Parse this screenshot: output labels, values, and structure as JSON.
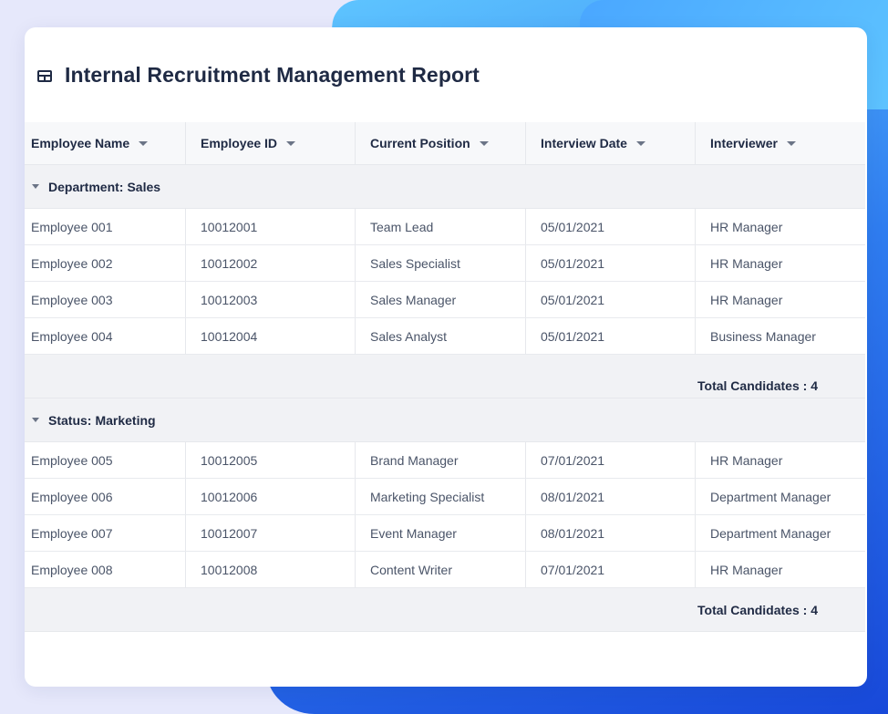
{
  "report": {
    "title": "Internal Recruitment Management Report"
  },
  "columns": [
    {
      "label": "Employee Name"
    },
    {
      "label": "Employee ID"
    },
    {
      "label": "Current Position"
    },
    {
      "label": "Interview Date"
    },
    {
      "label": "Interviewer"
    }
  ],
  "groups": [
    {
      "label": "Department:",
      "value": "Sales",
      "rows": [
        {
          "name": "Employee 001",
          "id": "10012001",
          "position": "Team Lead",
          "date": "05/01/2021",
          "interviewer": "HR Manager"
        },
        {
          "name": "Employee 002",
          "id": "10012002",
          "position": "Sales Specialist",
          "date": "05/01/2021",
          "interviewer": "HR Manager"
        },
        {
          "name": "Employee 003",
          "id": "10012003",
          "position": "Sales Manager",
          "date": "05/01/2021",
          "interviewer": "HR Manager"
        },
        {
          "name": "Employee 004",
          "id": "10012004",
          "position": "Sales Analyst",
          "date": "05/01/2021",
          "interviewer": "Business Manager"
        }
      ],
      "total": "Total Candidates : 4"
    },
    {
      "label": "Status:",
      "value": "Marketing",
      "rows": [
        {
          "name": "Employee 005",
          "id": "10012005",
          "position": "Brand Manager",
          "date": "07/01/2021",
          "interviewer": "HR Manager"
        },
        {
          "name": "Employee 006",
          "id": "10012006",
          "position": "Marketing Specialist",
          "date": "08/01/2021",
          "interviewer": "Department Manager"
        },
        {
          "name": "Employee 007",
          "id": "10012007",
          "position": "Event Manager",
          "date": "08/01/2021",
          "interviewer": "Department Manager"
        },
        {
          "name": "Employee 008",
          "id": "10012008",
          "position": "Content Writer",
          "date": "07/01/2021",
          "interviewer": "HR Manager"
        }
      ],
      "total": "Total Candidates : 4"
    }
  ],
  "icons": {
    "title": "table-icon",
    "column_menu": "caret-down-icon",
    "group_toggle": "caret-down-icon"
  },
  "colors": {
    "background": "#e6e8fb",
    "accent": "#2f7df0",
    "card": "#ffffff",
    "group_band": "#f1f2f5",
    "text_primary": "#1f2a44",
    "text_secondary": "#4a5468"
  }
}
